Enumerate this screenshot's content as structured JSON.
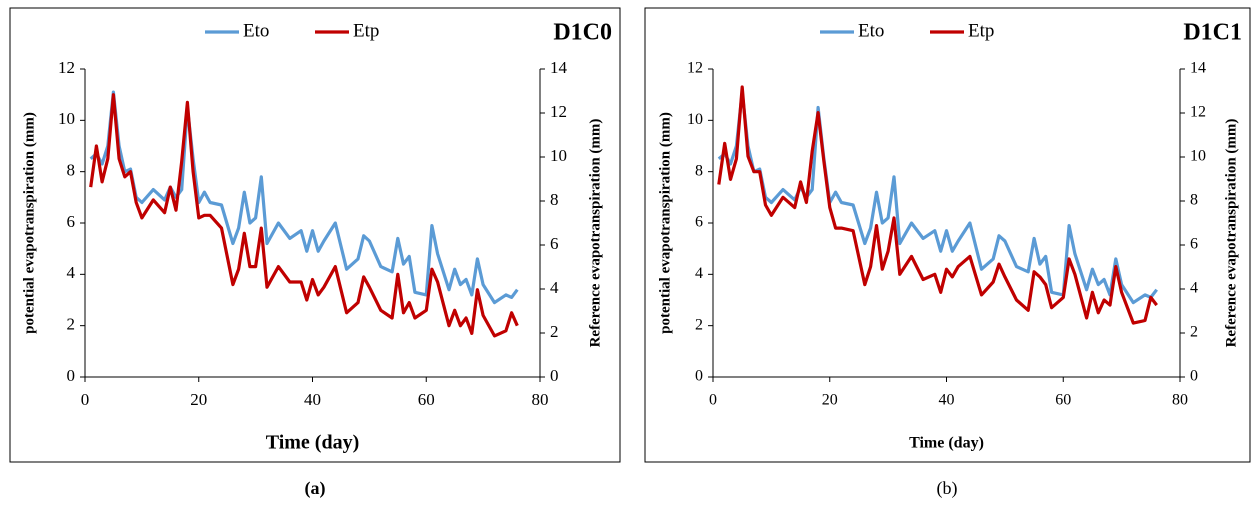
{
  "chart_data": [
    {
      "type": "line",
      "title": "D1C0",
      "caption": "(a)",
      "xlabel": "Time (day)",
      "ylabel": "potential evapotranspiration (mm)",
      "y2label": "Reference evapotranspiration (mm)",
      "x": [
        1,
        2,
        3,
        4,
        5,
        6,
        7,
        8,
        9,
        10,
        12,
        14,
        15,
        16,
        17,
        18,
        19,
        20,
        21,
        22,
        24,
        26,
        27,
        28,
        29,
        30,
        31,
        32,
        34,
        36,
        38,
        39,
        40,
        41,
        42,
        44,
        46,
        48,
        49,
        50,
        52,
        54,
        55,
        56,
        57,
        58,
        60,
        61,
        62,
        64,
        65,
        66,
        67,
        68,
        69,
        70,
        72,
        74,
        75,
        76
      ],
      "series": [
        {
          "name": "Eto",
          "color": "#5b9bd5",
          "axis": "y2",
          "values": [
            9.92,
            10.15,
            9.68,
            10.5,
            12.95,
            10.5,
            9.33,
            9.45,
            8.17,
            7.93,
            8.52,
            8.05,
            8.63,
            8.17,
            8.52,
            12.25,
            9.92,
            7.93,
            8.4,
            7.93,
            7.82,
            6.07,
            6.77,
            8.4,
            7.0,
            7.23,
            9.1,
            6.07,
            7.0,
            6.3,
            6.65,
            5.72,
            6.65,
            5.72,
            6.18,
            7.0,
            4.9,
            5.37,
            6.42,
            6.18,
            5.02,
            4.78,
            6.3,
            5.13,
            5.48,
            3.85,
            3.73,
            6.88,
            5.6,
            3.97,
            4.9,
            4.2,
            4.43,
            3.73,
            5.37,
            4.2,
            3.38,
            3.73,
            3.62,
            3.97
          ]
        },
        {
          "name": "Etp",
          "color": "#c00000",
          "values": [
            7.4,
            9.0,
            7.6,
            8.5,
            11.0,
            8.5,
            7.8,
            8.0,
            6.8,
            6.2,
            6.9,
            6.4,
            7.4,
            6.5,
            8.4,
            10.7,
            8.0,
            6.2,
            6.3,
            6.3,
            5.8,
            3.6,
            4.2,
            5.6,
            4.3,
            4.3,
            5.8,
            3.5,
            4.3,
            3.7,
            3.7,
            3.0,
            3.8,
            3.2,
            3.5,
            4.3,
            2.5,
            2.9,
            3.9,
            3.5,
            2.6,
            2.3,
            4.0,
            2.5,
            2.9,
            2.3,
            2.6,
            4.2,
            3.7,
            2.0,
            2.6,
            2.0,
            2.3,
            1.7,
            3.4,
            2.4,
            1.6,
            1.8,
            2.5,
            2.0
          ]
        }
      ],
      "xlim": [
        0,
        80
      ],
      "xticks": [
        0,
        20,
        40,
        60,
        80
      ],
      "ylim": [
        0,
        12
      ],
      "yticks": [
        0,
        2,
        4,
        6,
        8,
        10,
        12
      ],
      "y2lim": [
        0,
        14
      ],
      "y2ticks": [
        0,
        2,
        4,
        6,
        8,
        10,
        12,
        14
      ],
      "legend": "top"
    },
    {
      "type": "line",
      "title": "D1C1",
      "caption": "(b)",
      "xlabel": "Time (day)",
      "ylabel": "potential evapotranspiration (mm)",
      "y2label": "Reference evapotranspiration (mm)",
      "x": [
        1,
        2,
        3,
        4,
        5,
        6,
        7,
        8,
        9,
        10,
        12,
        14,
        15,
        16,
        17,
        18,
        19,
        20,
        21,
        22,
        24,
        26,
        27,
        28,
        29,
        30,
        31,
        32,
        34,
        36,
        38,
        39,
        40,
        41,
        42,
        44,
        46,
        48,
        49,
        50,
        52,
        54,
        55,
        56,
        57,
        58,
        60,
        61,
        62,
        64,
        65,
        66,
        67,
        68,
        69,
        70,
        72,
        74,
        75,
        76
      ],
      "series": [
        {
          "name": "Eto",
          "color": "#5b9bd5",
          "axis": "y2",
          "values": [
            9.92,
            10.15,
            9.68,
            10.5,
            12.95,
            10.5,
            9.33,
            9.45,
            8.17,
            7.93,
            8.52,
            8.05,
            8.63,
            8.17,
            8.52,
            12.25,
            9.92,
            7.93,
            8.4,
            7.93,
            7.82,
            6.07,
            6.77,
            8.4,
            7.0,
            7.23,
            9.1,
            6.07,
            7.0,
            6.3,
            6.65,
            5.72,
            6.65,
            5.72,
            6.18,
            7.0,
            4.9,
            5.37,
            6.42,
            6.18,
            5.02,
            4.78,
            6.3,
            5.13,
            5.48,
            3.85,
            3.73,
            6.88,
            5.6,
            3.97,
            4.9,
            4.2,
            4.43,
            3.73,
            5.37,
            4.2,
            3.38,
            3.73,
            3.62,
            3.97
          ]
        },
        {
          "name": "Etp",
          "color": "#c00000",
          "values": [
            7.5,
            9.1,
            7.7,
            8.5,
            11.3,
            8.6,
            8.0,
            8.0,
            6.7,
            6.3,
            7.0,
            6.6,
            7.6,
            6.8,
            8.8,
            10.3,
            8.4,
            6.6,
            5.8,
            5.8,
            5.7,
            3.6,
            4.3,
            5.9,
            4.2,
            4.9,
            6.2,
            4.0,
            4.7,
            3.8,
            4.0,
            3.3,
            4.2,
            3.9,
            4.3,
            4.7,
            3.2,
            3.7,
            4.4,
            3.9,
            3.0,
            2.6,
            4.1,
            3.9,
            3.6,
            2.7,
            3.1,
            4.6,
            4.0,
            2.3,
            3.3,
            2.5,
            3.0,
            2.8,
            4.3,
            3.3,
            2.1,
            2.2,
            3.1,
            2.8
          ]
        }
      ],
      "xlim": [
        0,
        80
      ],
      "xticks": [
        0,
        20,
        40,
        60,
        80
      ],
      "ylim": [
        0,
        12
      ],
      "yticks": [
        0,
        2,
        4,
        6,
        8,
        10,
        12
      ],
      "y2lim": [
        0,
        14
      ],
      "y2ticks": [
        0,
        2,
        4,
        6,
        8,
        10,
        12,
        14
      ],
      "legend": "top"
    }
  ]
}
